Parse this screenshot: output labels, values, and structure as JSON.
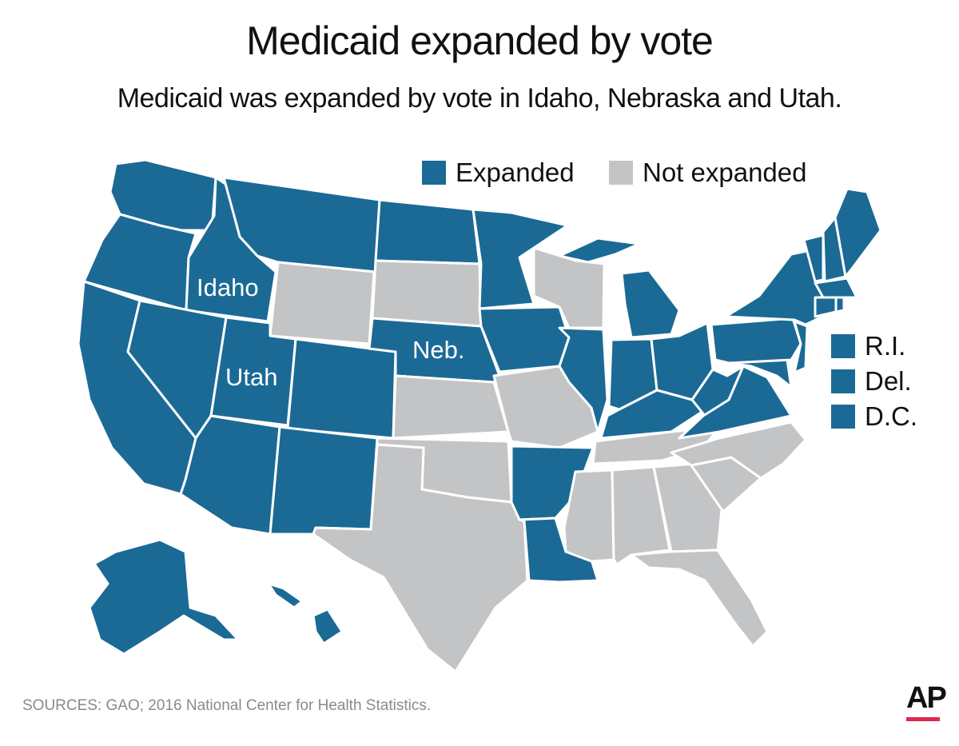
{
  "title": "Medicaid expanded by vote",
  "subtitle": "Medicaid was expanded by vote in Idaho, Nebraska and Utah.",
  "colors": {
    "expanded": "#1b6a96",
    "not_expanded": "#c3c4c6",
    "ap_accent": "#e0274d"
  },
  "legend": {
    "expanded": "Expanded",
    "not_expanded": "Not expanded"
  },
  "small_states": [
    "R.I.",
    "Del.",
    "D.C."
  ],
  "map_labels": {
    "idaho": "Idaho",
    "utah": "Utah",
    "nebraska": "Neb."
  },
  "sources": "SOURCES: GAO; 2016 National Center for Health Statistics.",
  "logo": "AP",
  "states": {
    "expanded": [
      "WA",
      "OR",
      "CA",
      "ID",
      "NV",
      "MT",
      "UT",
      "AZ",
      "CO",
      "NM",
      "ND",
      "NE",
      "MN",
      "IA",
      "IL",
      "IN",
      "MI",
      "OH",
      "KY",
      "WV",
      "VA",
      "MD",
      "DE",
      "DC",
      "PA",
      "NJ",
      "NY",
      "CT",
      "RI",
      "MA",
      "VT",
      "NH",
      "ME",
      "AR",
      "LA",
      "AK",
      "HI"
    ],
    "not_expanded": [
      "WY",
      "SD",
      "KS",
      "OK",
      "TX",
      "MO",
      "WI",
      "TN",
      "MS",
      "AL",
      "GA",
      "FL",
      "SC",
      "NC"
    ]
  }
}
